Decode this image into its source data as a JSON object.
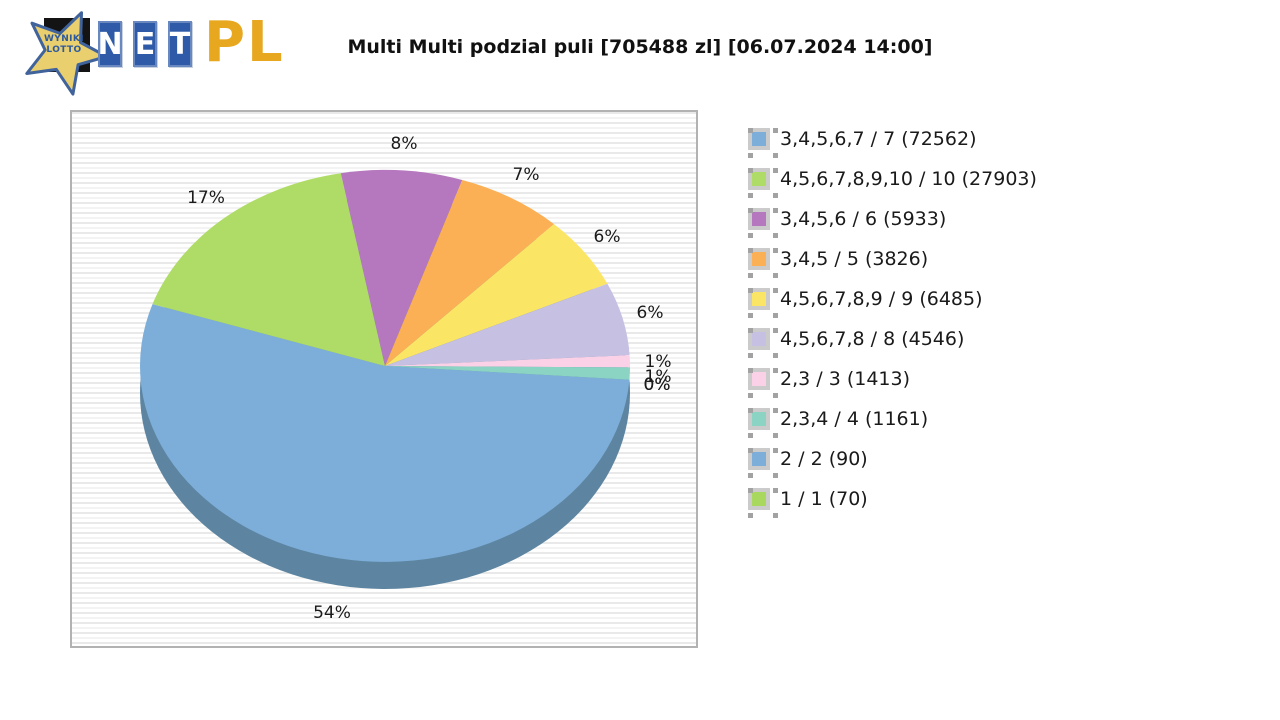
{
  "logo": {
    "star_line1": "WYNIKI",
    "star_line2": "LOTTO",
    "net": [
      "N",
      "E",
      "T"
    ],
    "suffix": "PL",
    "colors": {
      "star_fill": "#e9cf6d",
      "star_outline": "#41639c",
      "box_blue": "#2e5aa7",
      "pl_gold": "#e7a71e"
    }
  },
  "chart_data": {
    "type": "pie",
    "title": "Multi Multi podzial puli [705488 zl] [06.07.2024 14:00]",
    "unit": "%",
    "style": "3d",
    "legend_position": "right",
    "start_angle_deg": -4,
    "direction": "clockwise",
    "side_color": "#5d85a1",
    "slices": [
      {
        "label": "3,4,5,6,7 / 7",
        "value": 72562,
        "pct": 54,
        "color": "#7daed9"
      },
      {
        "label": "4,5,6,7,8,9,10 / 10",
        "value": 27903,
        "pct": 17,
        "color": "#afdc66"
      },
      {
        "label": "3,4,5,6 / 6",
        "value": 5933,
        "pct": 8,
        "color": "#b577bd"
      },
      {
        "label": "3,4,5 / 5",
        "value": 3826,
        "pct": 7,
        "color": "#fbb056"
      },
      {
        "label": "4,5,6,7,8,9 / 9",
        "value": 6485,
        "pct": 6,
        "color": "#fbe565"
      },
      {
        "label": "4,5,6,7,8 / 8",
        "value": 4546,
        "pct": 6,
        "color": "#c6c0e2"
      },
      {
        "label": "2,3 / 3",
        "value": 1413,
        "pct": 1,
        "color": "#fbd1e7"
      },
      {
        "label": "2,3,4 / 4",
        "value": 1161,
        "pct": 1,
        "color": "#8bd3c3"
      },
      {
        "label": "2 / 2",
        "value": 90,
        "pct": 0,
        "color": "#7daed9"
      },
      {
        "label": "1 / 1",
        "value": 70,
        "pct": 0,
        "color": "#a8d85e"
      }
    ]
  }
}
